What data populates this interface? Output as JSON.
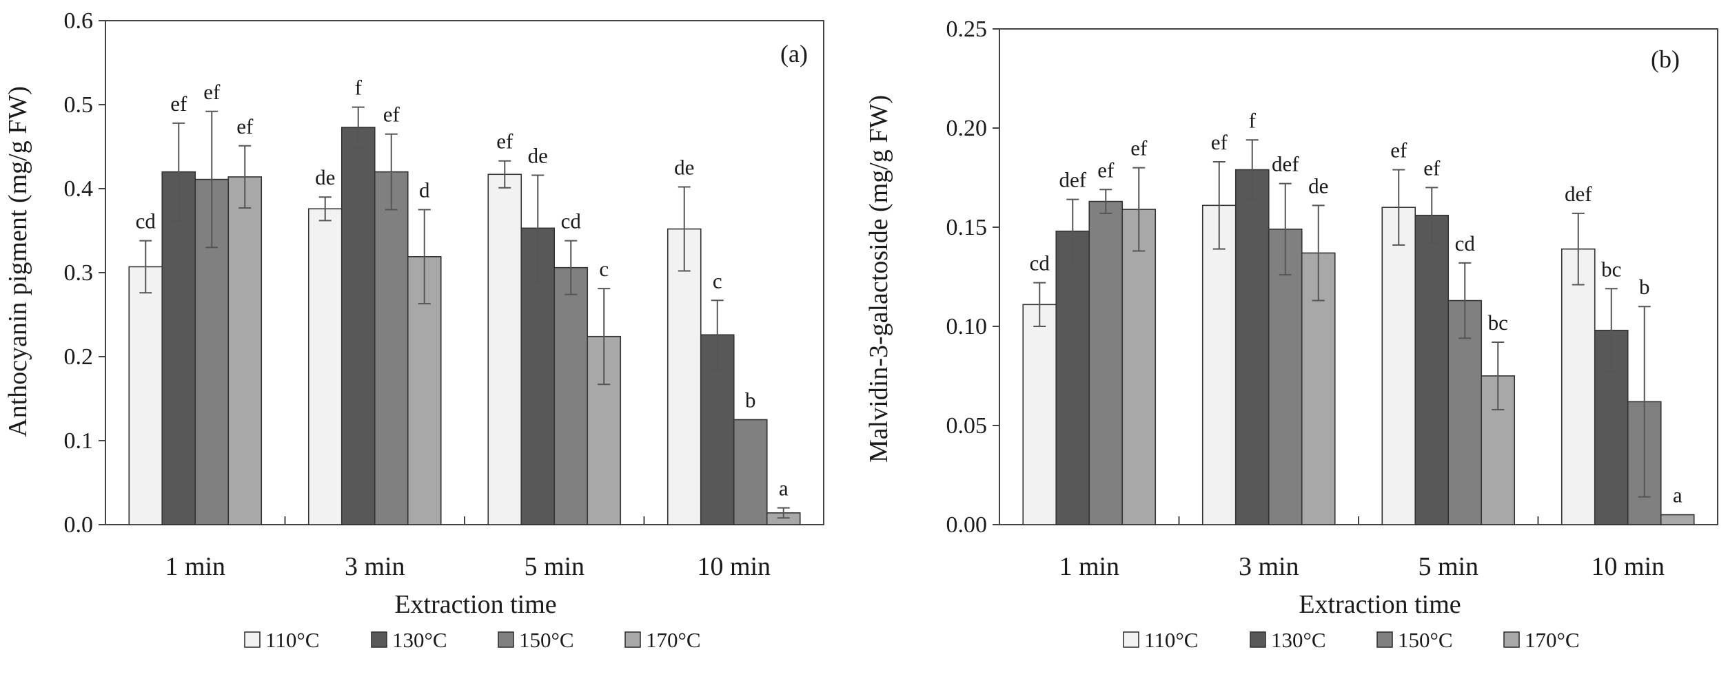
{
  "chart_data": [
    {
      "type": "bar",
      "panel_label": "(a)",
      "categories": [
        "1 min",
        "3 min",
        "5 min",
        "10 min"
      ],
      "xlabel": "Extraction time",
      "ylabel": "Anthocyanin pigment (mg/g FW)",
      "ylim": [
        0,
        0.6
      ],
      "yticks": [
        "0.0",
        "0.1",
        "0.2",
        "0.3",
        "0.4",
        "0.5",
        "0.6"
      ],
      "grid": false,
      "legend_position": "bottom",
      "series": [
        {
          "name": "110°C",
          "color": "#f2f2f2",
          "values": [
            0.307,
            0.376,
            0.417,
            0.352
          ],
          "errors": [
            0.031,
            0.014,
            0.016,
            0.05
          ],
          "labels": [
            "cd",
            "de",
            "ef",
            "de"
          ]
        },
        {
          "name": "130°C",
          "color": "#585858",
          "values": [
            0.42,
            0.473,
            0.353,
            0.226
          ],
          "errors": [
            0.058,
            0.024,
            0.063,
            0.041
          ],
          "labels": [
            "ef",
            "f",
            "de",
            "c"
          ]
        },
        {
          "name": "150°C",
          "color": "#808080",
          "values": [
            0.411,
            0.42,
            0.306,
            0.125
          ],
          "errors": [
            0.081,
            0.045,
            0.032,
            0.0
          ],
          "labels": [
            "ef",
            "ef",
            "cd",
            "b"
          ]
        },
        {
          "name": "170°C",
          "color": "#a8a8a8",
          "values": [
            0.414,
            0.319,
            0.224,
            0.014
          ],
          "errors": [
            0.037,
            0.056,
            0.057,
            0.006
          ],
          "labels": [
            "ef",
            "d",
            "c",
            "a"
          ]
        }
      ]
    },
    {
      "type": "bar",
      "panel_label": "(b)",
      "categories": [
        "1 min",
        "3 min",
        "5 min",
        "10 min"
      ],
      "xlabel": "Extraction time",
      "ylabel": "Malvidin-3-galactoside  (mg/g FW)",
      "ylim": [
        0,
        0.25
      ],
      "yticks": [
        "0.00",
        "0.05",
        "0.10",
        "0.15",
        "0.20",
        "0.25"
      ],
      "grid": false,
      "legend_position": "bottom",
      "series": [
        {
          "name": "110°C",
          "color": "#f2f2f2",
          "values": [
            0.111,
            0.161,
            0.16,
            0.139
          ],
          "errors": [
            0.011,
            0.022,
            0.019,
            0.018
          ],
          "labels": [
            "cd",
            "ef",
            "ef",
            "def"
          ]
        },
        {
          "name": "130°C",
          "color": "#585858",
          "values": [
            0.148,
            0.179,
            0.156,
            0.098
          ],
          "errors": [
            0.016,
            0.015,
            0.014,
            0.021
          ],
          "labels": [
            "def",
            "f",
            "ef",
            "bc"
          ]
        },
        {
          "name": "150°C",
          "color": "#808080",
          "values": [
            0.163,
            0.149,
            0.113,
            0.062
          ],
          "errors": [
            0.006,
            0.023,
            0.019,
            0.048
          ],
          "labels": [
            "ef",
            "def",
            "cd",
            "b"
          ]
        },
        {
          "name": "170°C",
          "color": "#a8a8a8",
          "values": [
            0.159,
            0.137,
            0.075,
            0.005
          ],
          "errors": [
            0.021,
            0.024,
            0.017,
            0.0
          ],
          "labels": [
            "ef",
            "de",
            "bc",
            "a"
          ]
        }
      ]
    }
  ]
}
